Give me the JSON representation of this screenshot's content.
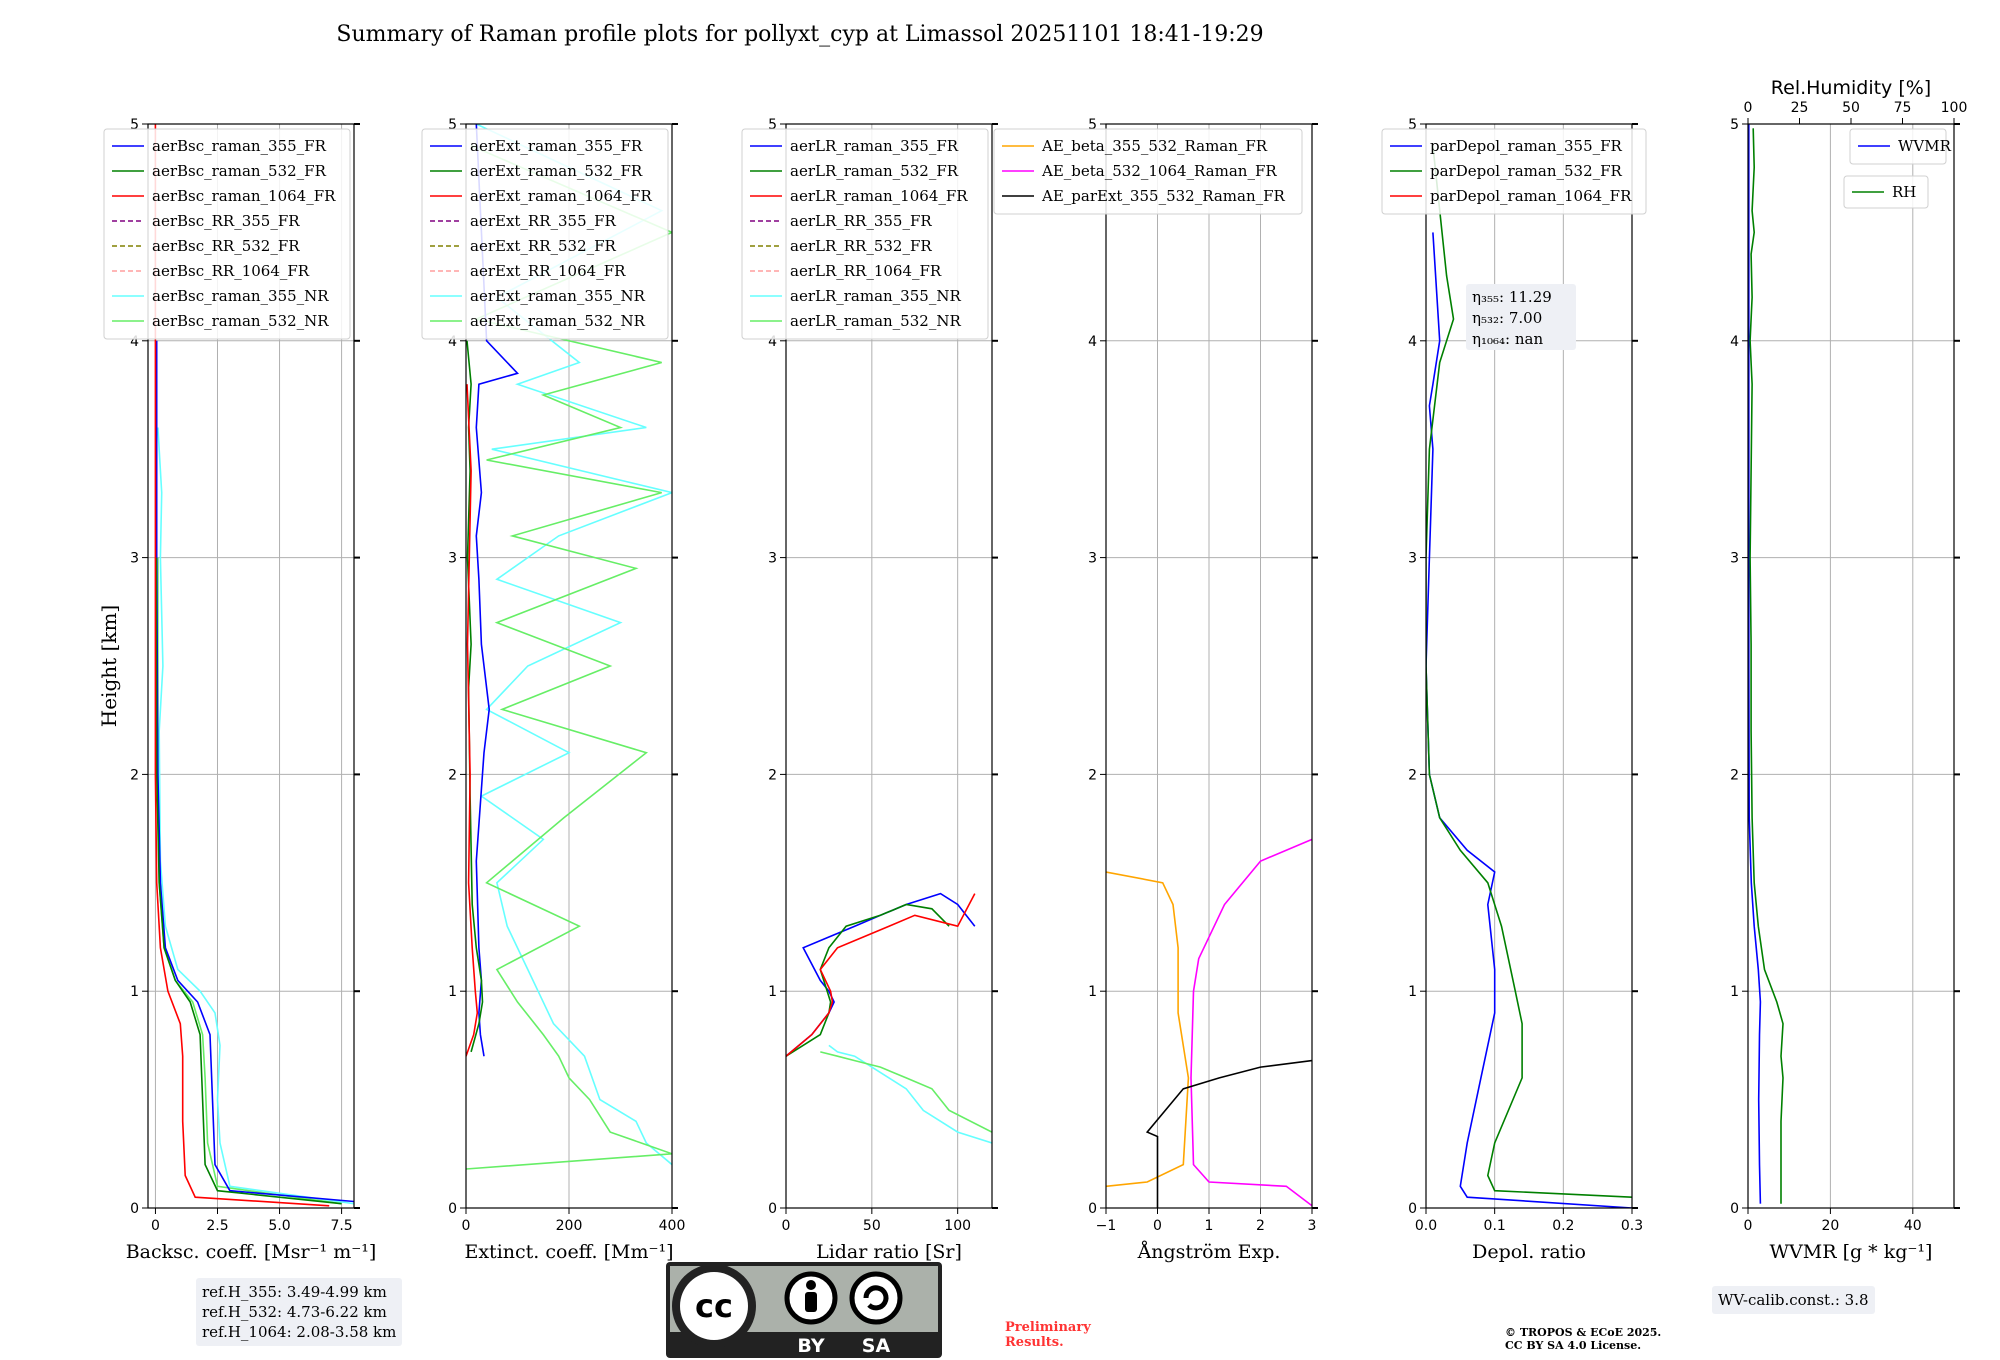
{
  "figure": {
    "title": "Summary of Raman profile plots for pollyxt_cyp at Limassol 20251101 18:41-19:29",
    "ylabel": "Height [km]",
    "y_ticks": [
      0,
      1,
      2,
      3,
      4,
      5
    ],
    "ylim": [
      0,
      5
    ],
    "preliminary": [
      "Preliminary",
      "Results."
    ],
    "copyright": [
      "© TROPOS & ECoE 2025.",
      "CC BY SA 4.0 License."
    ],
    "ref_heights": [
      "ref.H_355: 3.49-4.99 km",
      "ref.H_532: 4.73-6.22 km",
      "ref.H_1064: 2.08-3.58 km"
    ],
    "wv_calib": "WV-calib.const.: 3.8",
    "license_badge": {
      "by": "BY",
      "sa": "SA"
    }
  },
  "colors": {
    "blue": "#0000ff",
    "green": "#008000",
    "red": "#ff0000",
    "purple": "#800080",
    "olive": "#808000",
    "salmon": "#ff9e9e",
    "cyan": "#66ffff",
    "lightgreen": "#66ee66",
    "orange": "#ffa500",
    "magenta": "#ff00ff",
    "black": "#000000",
    "grid": "#b0b0b0"
  },
  "chart_data": [
    {
      "type": "line",
      "panel": "backscatter",
      "xlabel": "Backsc. coeff. [Msr⁻¹ m⁻¹]",
      "xlim": [
        -0.3,
        8
      ],
      "x_ticks": [
        0,
        2.5,
        5,
        7.5
      ],
      "x_tick_labels": [
        "0",
        "2.5",
        "5.0",
        "7.5"
      ],
      "legend": [
        "aerBsc_raman_355_FR",
        "aerBsc_raman_532_FR",
        "aerBsc_raman_1064_FR",
        "aerBsc_RR_355_FR",
        "aerBsc_RR_532_FR",
        "aerBsc_RR_1064_FR",
        "aerBsc_raman_355_NR",
        "aerBsc_raman_532_NR"
      ],
      "legend_colors": [
        "blue",
        "green",
        "red",
        "purple",
        "olive",
        "salmon",
        "cyan",
        "lightgreen"
      ],
      "legend_dashed": [
        false,
        false,
        false,
        true,
        true,
        true,
        false,
        false
      ],
      "series": [
        {
          "name": "aerBsc_raman_355_NR",
          "color": "cyan",
          "x": [
            8,
            3,
            2.6,
            2.5,
            2.6,
            2.4,
            1.8,
            0.9,
            0.4,
            0.2,
            0.15,
            0.3,
            0.2,
            0.25,
            0.1
          ],
          "y": [
            0.02,
            0.1,
            0.3,
            0.5,
            0.75,
            0.9,
            1.0,
            1.1,
            1.3,
            1.6,
            2.2,
            2.5,
            3.0,
            3.3,
            3.6
          ]
        },
        {
          "name": "aerBsc_raman_532_NR",
          "color": "lightgreen",
          "x": [
            7.5,
            2.5,
            2.1,
            2.0,
            1.9,
            1.5,
            0.8,
            0.35,
            0.15,
            0.1,
            0.1
          ],
          "y": [
            0.02,
            0.1,
            0.3,
            0.6,
            0.8,
            0.95,
            1.05,
            1.2,
            1.5,
            2.0,
            3.0
          ]
        },
        {
          "name": "aerBsc_raman_355_FR",
          "color": "blue",
          "x": [
            8,
            3,
            2.4,
            2.3,
            2.2,
            1.7,
            0.9,
            0.4,
            0.2,
            0.1,
            0.05,
            0.05
          ],
          "y": [
            0.03,
            0.08,
            0.2,
            0.5,
            0.8,
            0.95,
            1.05,
            1.2,
            1.5,
            2.0,
            3.0,
            4.0
          ]
        },
        {
          "name": "aerBsc_raman_532_FR",
          "color": "green",
          "x": [
            7.5,
            2.5,
            2.0,
            1.9,
            1.8,
            1.4,
            0.8,
            0.35,
            0.15,
            0.05,
            0.03
          ],
          "y": [
            0.02,
            0.08,
            0.2,
            0.5,
            0.8,
            0.95,
            1.05,
            1.2,
            1.5,
            2.0,
            3.0
          ]
        },
        {
          "name": "aerBsc_raman_1064_FR",
          "color": "red",
          "x": [
            7,
            1.6,
            1.2,
            1.1,
            1.1,
            1.0,
            0.5,
            0.2,
            0.05,
            0.0,
            0.0
          ],
          "y": [
            0.01,
            0.05,
            0.15,
            0.4,
            0.7,
            0.85,
            1.0,
            1.2,
            1.5,
            2.0,
            5.0
          ]
        }
      ]
    },
    {
      "type": "line",
      "panel": "extinction",
      "xlabel": "Extinct. coeff. [Mm⁻¹]",
      "xlim": [
        0,
        400
      ],
      "x_ticks": [
        0,
        200,
        400
      ],
      "x_tick_labels": [
        "0",
        "200",
        "400"
      ],
      "legend": [
        "aerExt_raman_355_FR",
        "aerExt_raman_532_FR",
        "aerExt_raman_1064_FR",
        "aerExt_RR_355_FR",
        "aerExt_RR_532_FR",
        "aerExt_RR_1064_FR",
        "aerExt_raman_355_NR",
        "aerExt_raman_532_NR"
      ],
      "legend_colors": [
        "blue",
        "green",
        "red",
        "purple",
        "olive",
        "salmon",
        "cyan",
        "lightgreen"
      ],
      "legend_dashed": [
        false,
        false,
        false,
        true,
        true,
        true,
        false,
        false
      ],
      "series": [
        {
          "name": "aerExt_raman_355_NR",
          "color": "cyan",
          "x": [
            400,
            350,
            330,
            260,
            230,
            170,
            140,
            120,
            80,
            60,
            150,
            30,
            200,
            40,
            120,
            300,
            60,
            180,
            400,
            50,
            350,
            100,
            220,
            60,
            380,
            20
          ],
          "y": [
            0.2,
            0.3,
            0.4,
            0.5,
            0.7,
            0.85,
            1.0,
            1.1,
            1.3,
            1.5,
            1.7,
            1.9,
            2.1,
            2.3,
            2.5,
            2.7,
            2.9,
            3.1,
            3.3,
            3.5,
            3.6,
            3.8,
            3.9,
            4.2,
            4.6,
            5.0
          ]
        },
        {
          "name": "aerExt_raman_532_NR",
          "color": "lightgreen",
          "x": [
            0,
            400,
            280,
            240,
            200,
            180,
            150,
            100,
            60,
            220,
            40,
            190,
            350,
            70,
            280,
            60,
            330,
            90,
            380,
            40,
            300,
            150,
            380,
            20,
            400,
            10
          ],
          "y": [
            0.18,
            0.25,
            0.35,
            0.5,
            0.6,
            0.7,
            0.8,
            0.95,
            1.1,
            1.3,
            1.5,
            1.8,
            2.1,
            2.3,
            2.5,
            2.7,
            2.95,
            3.1,
            3.3,
            3.45,
            3.6,
            3.75,
            3.9,
            4.1,
            4.5,
            4.9
          ]
        },
        {
          "name": "aerExt_raman_355_FR",
          "color": "blue",
          "x": [
            35,
            28,
            25,
            30,
            25,
            20,
            35,
            45,
            30,
            25,
            20,
            30,
            20,
            25,
            100,
            40,
            20
          ],
          "y": [
            0.7,
            0.8,
            0.9,
            1.05,
            1.2,
            1.6,
            2.1,
            2.3,
            2.6,
            2.9,
            3.1,
            3.3,
            3.6,
            3.8,
            3.85,
            4.0,
            5.0
          ]
        },
        {
          "name": "aerExt_raman_532_FR",
          "color": "green",
          "x": [
            10,
            25,
            32,
            30,
            20,
            12,
            8,
            5,
            10,
            3,
            8,
            5,
            10,
            2
          ],
          "y": [
            0.72,
            0.85,
            0.95,
            1.05,
            1.2,
            1.4,
            1.9,
            2.4,
            2.6,
            3.0,
            3.4,
            3.6,
            3.8,
            4.0
          ]
        },
        {
          "name": "aerExt_raman_1064_FR",
          "color": "red",
          "x": [
            0,
            15,
            22,
            18,
            12,
            5,
            8,
            3,
            10,
            2
          ],
          "y": [
            0.7,
            0.8,
            0.9,
            1.0,
            1.2,
            1.5,
            2.0,
            2.6,
            3.4,
            3.8
          ]
        }
      ]
    },
    {
      "type": "line",
      "panel": "lidar_ratio",
      "xlabel": "Lidar ratio [Sr]",
      "xlim": [
        0,
        120
      ],
      "x_ticks": [
        0,
        50,
        100
      ],
      "x_tick_labels": [
        "0",
        "50",
        "100"
      ],
      "legend": [
        "aerLR_raman_355_FR",
        "aerLR_raman_532_FR",
        "aerLR_raman_1064_FR",
        "aerLR_RR_355_FR",
        "aerLR_RR_532_FR",
        "aerLR_RR_1064_FR",
        "aerLR_raman_355_NR",
        "aerLR_raman_532_NR"
      ],
      "legend_colors": [
        "blue",
        "green",
        "red",
        "purple",
        "olive",
        "salmon",
        "cyan",
        "lightgreen"
      ],
      "legend_dashed": [
        false,
        false,
        false,
        true,
        true,
        true,
        false,
        false
      ],
      "series": [
        {
          "name": "aerLR_raman_355_NR",
          "color": "cyan",
          "x": [
            120,
            100,
            80,
            70,
            60,
            50,
            40,
            30,
            25
          ],
          "y": [
            0.3,
            0.35,
            0.45,
            0.55,
            0.6,
            0.65,
            0.7,
            0.72,
            0.75
          ]
        },
        {
          "name": "aerLR_raman_532_NR",
          "color": "lightgreen",
          "x": [
            120,
            95,
            85,
            70,
            55,
            40,
            30,
            20
          ],
          "y": [
            0.35,
            0.45,
            0.55,
            0.6,
            0.65,
            0.68,
            0.7,
            0.72
          ]
        },
        {
          "name": "aerLR_raman_355_FR",
          "color": "blue",
          "x": [
            0,
            15,
            25,
            28,
            25,
            20,
            10,
            25,
            40,
            55,
            70,
            90,
            100,
            110
          ],
          "y": [
            0.7,
            0.8,
            0.9,
            0.95,
            1.0,
            1.05,
            1.2,
            1.25,
            1.3,
            1.35,
            1.4,
            1.45,
            1.4,
            1.3
          ]
        },
        {
          "name": "aerLR_raman_532_FR",
          "color": "green",
          "x": [
            0,
            20,
            25,
            26,
            24,
            20,
            25,
            35,
            55,
            70,
            85,
            95
          ],
          "y": [
            0.7,
            0.8,
            0.9,
            0.95,
            1.0,
            1.1,
            1.2,
            1.3,
            1.35,
            1.4,
            1.38,
            1.3
          ]
        },
        {
          "name": "aerLR_raman_1064_FR",
          "color": "red",
          "x": [
            0,
            15,
            25,
            27,
            26,
            20,
            30,
            45,
            60,
            75,
            100,
            110
          ],
          "y": [
            0.7,
            0.8,
            0.9,
            0.95,
            1.0,
            1.1,
            1.2,
            1.25,
            1.3,
            1.35,
            1.3,
            1.45
          ]
        }
      ]
    },
    {
      "type": "line",
      "panel": "angstrom",
      "xlabel": "Ångström Exp.",
      "xlim": [
        -1,
        3
      ],
      "x_ticks": [
        -1,
        0,
        1,
        2,
        3
      ],
      "x_tick_labels": [
        "−1",
        "0",
        "1",
        "2",
        "3"
      ],
      "legend": [
        "AE_beta_355_532_Raman_FR",
        "AE_beta_532_1064_Raman_FR",
        "AE_parExt_355_532_Raman_FR"
      ],
      "legend_colors": [
        "orange",
        "magenta",
        "black"
      ],
      "legend_dashed": [
        false,
        false,
        false
      ],
      "series": [
        {
          "name": "AE_beta_355_532_Raman_FR",
          "color": "orange",
          "x": [
            -1,
            -0.2,
            0.5,
            0.6,
            0.4,
            0.4,
            0.3,
            0.1,
            -1
          ],
          "y": [
            0.1,
            0.12,
            0.2,
            0.6,
            0.9,
            1.2,
            1.4,
            1.5,
            1.55
          ]
        },
        {
          "name": "AE_beta_532_1064_Raman_FR",
          "color": "magenta",
          "x": [
            3,
            2.5,
            1.0,
            0.7,
            0.65,
            0.7,
            0.8,
            1.3,
            2.0,
            3.0
          ],
          "y": [
            0.01,
            0.1,
            0.12,
            0.2,
            0.6,
            1.0,
            1.15,
            1.4,
            1.6,
            1.7
          ]
        },
        {
          "name": "AE_parExt_355_532_Raman_FR",
          "color": "black",
          "x": [
            0,
            0,
            -0.2,
            0.5,
            1.2,
            2.0,
            3.0
          ],
          "y": [
            0,
            0.33,
            0.35,
            0.55,
            0.6,
            0.65,
            0.68
          ]
        }
      ]
    },
    {
      "type": "line",
      "panel": "depol",
      "xlabel": "Depol. ratio",
      "xlim": [
        0,
        0.3
      ],
      "x_ticks": [
        0,
        0.1,
        0.2,
        0.3
      ],
      "x_tick_labels": [
        "0.0",
        "0.1",
        "0.2",
        "0.3"
      ],
      "legend": [
        "parDepol_raman_355_FR",
        "parDepol_raman_532_FR",
        "parDepol_raman_1064_FR"
      ],
      "legend_colors": [
        "blue",
        "green",
        "red"
      ],
      "legend_dashed": [
        false,
        false,
        false
      ],
      "eta": [
        "η₃₅₅: 11.29",
        "η₅₃₂: 7.00",
        "η₁₀₆₄: nan"
      ],
      "series": [
        {
          "name": "parDepol_raman_355_FR",
          "color": "blue",
          "x": [
            0.3,
            0.06,
            0.05,
            0.06,
            0.08,
            0.1,
            0.1,
            0.09,
            0.1,
            0.06,
            0.02,
            0.005,
            0.0,
            0.005,
            0.01,
            0.005,
            0.01,
            0.02,
            0.01
          ],
          "y": [
            0.0,
            0.05,
            0.1,
            0.3,
            0.6,
            0.9,
            1.1,
            1.4,
            1.55,
            1.65,
            1.8,
            2.0,
            2.5,
            3.0,
            3.5,
            3.7,
            3.8,
            4.0,
            4.5
          ]
        },
        {
          "name": "parDepol_raman_532_FR",
          "color": "green",
          "x": [
            0.3,
            0.1,
            0.09,
            0.1,
            0.14,
            0.14,
            0.13,
            0.11,
            0.09,
            0.05,
            0.02,
            0.005,
            0.0,
            0.0,
            0.005,
            0.02,
            0.04,
            0.03,
            0.01
          ],
          "y": [
            0.05,
            0.08,
            0.15,
            0.3,
            0.6,
            0.85,
            1.0,
            1.3,
            1.5,
            1.65,
            1.8,
            2.0,
            2.5,
            3.0,
            3.5,
            3.9,
            4.1,
            4.3,
            4.9
          ]
        }
      ]
    },
    {
      "type": "line",
      "panel": "wvmr",
      "xlabel": "WVMR [g * kg⁻¹]",
      "xlim": [
        0,
        50
      ],
      "x_ticks": [
        0,
        20,
        40
      ],
      "x_tick_labels": [
        "0",
        "20",
        "40"
      ],
      "top_label": "Rel.Humidity [%]",
      "top_xlim": [
        0,
        100
      ],
      "top_ticks": [
        0,
        25,
        50,
        75,
        100
      ],
      "top_tick_labels": [
        "0",
        "25",
        "50",
        "75",
        "100"
      ],
      "legend": [
        "WVMR"
      ],
      "legend_colors": [
        "blue"
      ],
      "legend_dashed": [
        false
      ],
      "legend2": [
        "RH"
      ],
      "legend2_colors": [
        "green"
      ],
      "series": [
        {
          "name": "WVMR",
          "color": "blue",
          "x": [
            3,
            2.8,
            2.6,
            2.8,
            3.0,
            2.5,
            1.5,
            0.8,
            0.3,
            0.2,
            0.2
          ],
          "y": [
            0.02,
            0.2,
            0.5,
            0.8,
            0.95,
            1.1,
            1.3,
            1.5,
            1.8,
            2.5,
            5.0
          ]
        },
        {
          "name": "RH",
          "color": "green",
          "axis": "top",
          "x": [
            16,
            16,
            16,
            17,
            16,
            17,
            14,
            8,
            5,
            3,
            2,
            1.5,
            1.5,
            1,
            1.5,
            2,
            1,
            2,
            1.5,
            3,
            2,
            3,
            2.5
          ],
          "y": [
            0.02,
            0.2,
            0.4,
            0.6,
            0.7,
            0.85,
            0.95,
            1.1,
            1.3,
            1.5,
            1.8,
            2.2,
            2.6,
            3.0,
            3.4,
            3.8,
            4.0,
            4.2,
            4.4,
            4.5,
            4.6,
            4.8,
            4.98
          ]
        }
      ]
    }
  ]
}
